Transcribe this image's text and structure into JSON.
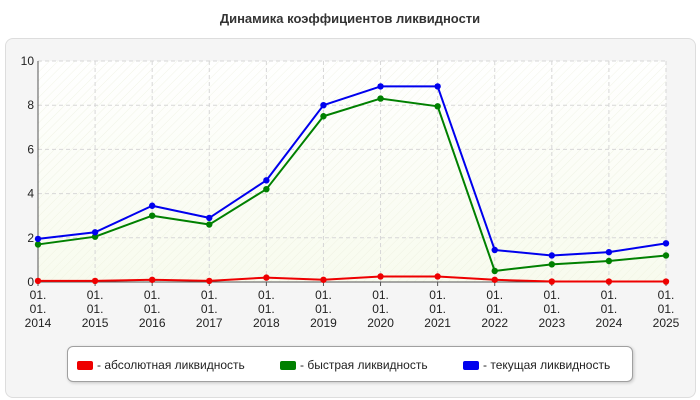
{
  "chart_data": {
    "type": "line",
    "title": "Динамика коэффициентов ликвидности",
    "x_labels": [
      [
        "01.",
        "01.",
        "2014"
      ],
      [
        "01.",
        "01.",
        "2015"
      ],
      [
        "01.",
        "01.",
        "2016"
      ],
      [
        "01.",
        "01.",
        "2017"
      ],
      [
        "01.",
        "01.",
        "2018"
      ],
      [
        "01.",
        "01.",
        "2019"
      ],
      [
        "01.",
        "01.",
        "2020"
      ],
      [
        "01.",
        "01.",
        "2021"
      ],
      [
        "01.",
        "01.",
        "2022"
      ],
      [
        "01.",
        "01.",
        "2023"
      ],
      [
        "01.",
        "01.",
        "2024"
      ],
      [
        "01.",
        "01.",
        "2025"
      ]
    ],
    "ylim": [
      0,
      10
    ],
    "yticks": [
      0,
      2,
      4,
      6,
      8,
      10
    ],
    "grid": true,
    "legend_position": "bottom",
    "series": [
      {
        "name": "- абсолютная ликвидность",
        "color": "#ee0000",
        "values": [
          0.05,
          0.05,
          0.1,
          0.05,
          0.2,
          0.1,
          0.25,
          0.25,
          0.1,
          0.02,
          0.02,
          0.02
        ]
      },
      {
        "name": "- быстрая ликвидность",
        "color": "#008000",
        "values": [
          1.7,
          2.05,
          3.0,
          2.6,
          4.2,
          7.5,
          8.3,
          7.95,
          0.5,
          0.8,
          0.95,
          1.2
        ]
      },
      {
        "name": "- текущая ликвидность",
        "color": "#0000ee",
        "values": [
          1.95,
          2.25,
          3.45,
          2.9,
          4.6,
          8.0,
          8.85,
          8.85,
          1.45,
          1.2,
          1.35,
          1.75
        ]
      }
    ]
  }
}
